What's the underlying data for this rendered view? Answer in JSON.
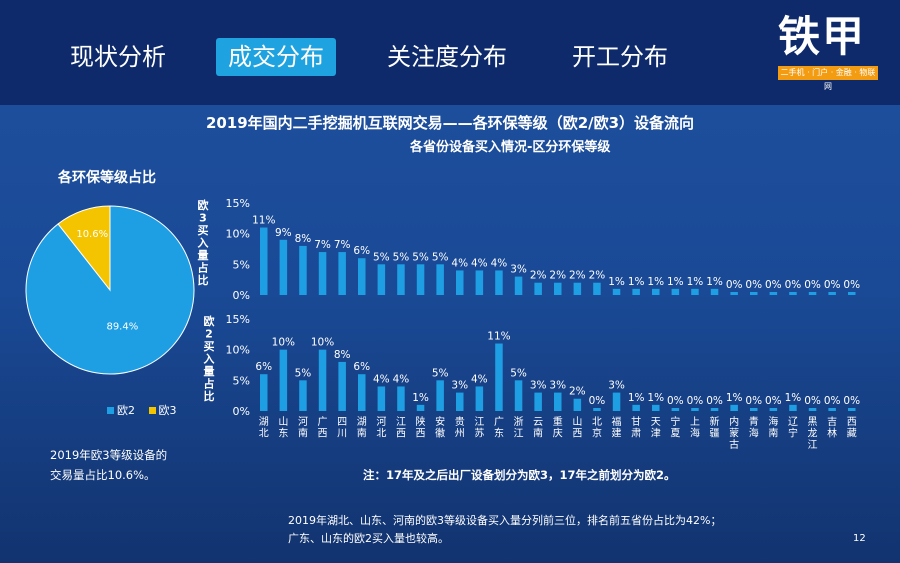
{
  "nav": {
    "tabs": [
      {
        "label": "现状分析",
        "active": false
      },
      {
        "label": "成交分布",
        "active": true
      },
      {
        "label": "关注度分布",
        "active": false
      },
      {
        "label": "开工分布",
        "active": false
      }
    ]
  },
  "logo": {
    "main": "铁甲",
    "sub": "二手机 · 门户 · 金融 · 物联网"
  },
  "page": {
    "title": "2019年国内二手挖掘机互联网交易——各环保等级（欧2/欧3）设备流向",
    "subtitle": "各省份设备买入情况-区分环保等级",
    "footnote": "注：17年及之后出厂设备划分为欧3，17年之前划分为欧2。",
    "summary_line1": "2019年湖北、山东、河南的欧3等级设备买入量分列前三位，排名前五省份占比为42%；",
    "summary_line2": "广东、山东的欧2买入量也较高。",
    "page_number": "12"
  },
  "pie": {
    "title": "各环保等级占比",
    "note_line1": "2019年欧3等级设备的",
    "note_line2": "交易量占比10.6%。"
  },
  "colors": {
    "blue": "#1e9fe3",
    "yellow": "#f5c400",
    "bg": "#0f2a66"
  },
  "chart_data": [
    {
      "type": "pie",
      "slices": [
        {
          "name": "欧2",
          "value": 89.4,
          "label": "89.4%",
          "color": "#1e9fe3"
        },
        {
          "name": "欧3",
          "value": 10.6,
          "label": "10.6%",
          "color": "#f5c400"
        }
      ],
      "legend": [
        "欧2",
        "欧3"
      ],
      "legend_position": "bottom"
    },
    {
      "type": "bar",
      "ylabel": "欧3买入量占比",
      "ylim": [
        0,
        15
      ],
      "yticks": [
        "0%",
        "5%",
        "10%",
        "15%"
      ],
      "categories": [
        "湖北",
        "山东",
        "河南",
        "广西",
        "四川",
        "湖南",
        "河北",
        "江西",
        "陕西",
        "安徽",
        "贵州",
        "江苏",
        "广东",
        "浙江",
        "云南",
        "重庆",
        "山西",
        "北京",
        "福建",
        "甘肃",
        "天津",
        "宁夏",
        "上海",
        "新疆",
        "内蒙古",
        "青海",
        "海南",
        "辽宁",
        "黑龙江",
        "吉林",
        "西藏"
      ],
      "values": [
        11,
        9,
        8,
        7,
        7,
        6,
        5,
        5,
        5,
        5,
        4,
        4,
        4,
        3,
        2,
        2,
        2,
        2,
        1,
        1,
        1,
        1,
        1,
        1,
        0,
        0,
        0,
        0,
        0,
        0,
        0
      ],
      "labels": [
        "11%",
        "9%",
        "8%",
        "7%",
        "7%",
        "6%",
        "5%",
        "5%",
        "5%",
        "5%",
        "4%",
        "4%",
        "4%",
        "3%",
        "2%",
        "2%",
        "2%",
        "2%",
        "1%",
        "1%",
        "1%",
        "1%",
        "1%",
        "1%",
        "0%",
        "0%",
        "0%",
        "0%",
        "0%",
        "0%",
        "0%"
      ]
    },
    {
      "type": "bar",
      "ylabel": "欧2买入量占比",
      "ylim": [
        0,
        15
      ],
      "yticks": [
        "0%",
        "5%",
        "10%",
        "15%"
      ],
      "categories": [
        "湖北",
        "山东",
        "河南",
        "广西",
        "四川",
        "湖南",
        "河北",
        "江西",
        "陕西",
        "安徽",
        "贵州",
        "江苏",
        "广东",
        "浙江",
        "云南",
        "重庆",
        "山西",
        "北京",
        "福建",
        "甘肃",
        "天津",
        "宁夏",
        "上海",
        "新疆",
        "内蒙古",
        "青海",
        "海南",
        "辽宁",
        "黑龙江",
        "吉林",
        "西藏"
      ],
      "values": [
        6,
        10,
        5,
        10,
        8,
        6,
        4,
        4,
        1,
        5,
        3,
        4,
        11,
        5,
        3,
        3,
        2,
        0,
        3,
        1,
        1,
        0,
        0,
        0,
        1,
        0,
        0,
        1,
        0,
        0,
        0
      ],
      "labels": [
        "6%",
        "10%",
        "5%",
        "10%",
        "8%",
        "6%",
        "4%",
        "4%",
        "1%",
        "5%",
        "3%",
        "4%",
        "11%",
        "5%",
        "3%",
        "3%",
        "2%",
        "0%",
        "3%",
        "1%",
        "1%",
        "0%",
        "0%",
        "0%",
        "1%",
        "0%",
        "0%",
        "1%",
        "0%",
        "0%",
        "0%"
      ]
    }
  ]
}
